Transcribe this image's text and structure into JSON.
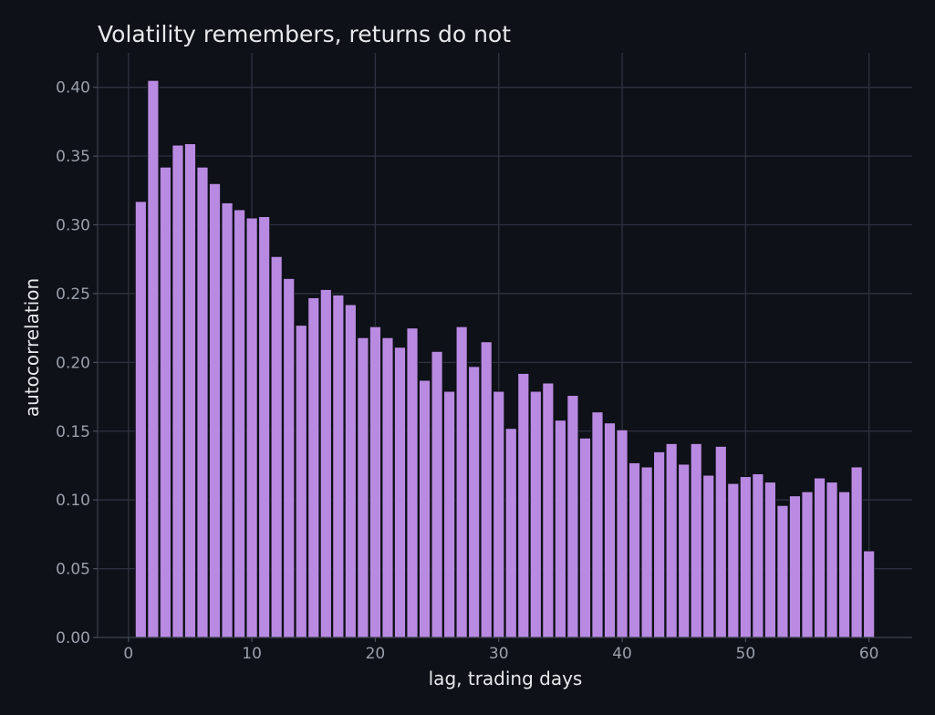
{
  "chart_data": {
    "type": "bar",
    "title": "Volatility remembers, returns do not",
    "xlabel": "lag, trading days",
    "ylabel": "autocorrelation",
    "x": [
      1,
      2,
      3,
      4,
      5,
      6,
      7,
      8,
      9,
      10,
      11,
      12,
      13,
      14,
      15,
      16,
      17,
      18,
      19,
      20,
      21,
      22,
      23,
      24,
      25,
      26,
      27,
      28,
      29,
      30,
      31,
      32,
      33,
      34,
      35,
      36,
      37,
      38,
      39,
      40,
      41,
      42,
      43,
      44,
      45,
      46,
      47,
      48,
      49,
      50,
      51,
      52,
      53,
      54,
      55,
      56,
      57,
      58,
      59,
      60
    ],
    "values": [
      0.317,
      0.405,
      0.342,
      0.358,
      0.359,
      0.342,
      0.33,
      0.316,
      0.311,
      0.305,
      0.306,
      0.277,
      0.261,
      0.227,
      0.247,
      0.253,
      0.249,
      0.242,
      0.218,
      0.226,
      0.218,
      0.211,
      0.225,
      0.187,
      0.208,
      0.179,
      0.226,
      0.197,
      0.215,
      0.179,
      0.152,
      0.192,
      0.179,
      0.185,
      0.158,
      0.176,
      0.145,
      0.164,
      0.156,
      0.151,
      0.127,
      0.124,
      0.135,
      0.141,
      0.126,
      0.141,
      0.118,
      0.139,
      0.112,
      0.117,
      0.119,
      0.113,
      0.096,
      0.103,
      0.106,
      0.116,
      0.113,
      0.106,
      0.124,
      0.063
    ],
    "xlim": [
      -2.5,
      63.5
    ],
    "ylim": [
      0,
      0.425
    ],
    "xticks": [
      0,
      10,
      20,
      30,
      40,
      50,
      60
    ],
    "xtick_labels": [
      "0",
      "10",
      "20",
      "30",
      "40",
      "50",
      "60"
    ],
    "yticks": [
      0,
      0.05,
      0.1,
      0.15,
      0.2,
      0.25,
      0.3,
      0.35,
      0.4
    ],
    "ytick_labels": [
      "0.00",
      "0.05",
      "0.10",
      "0.15",
      "0.20",
      "0.25",
      "0.30",
      "0.35",
      "0.40"
    ],
    "grid": true,
    "bar_color": "#b98ae2",
    "background_color": "#0e1117",
    "grid_color": "#2f3340"
  }
}
